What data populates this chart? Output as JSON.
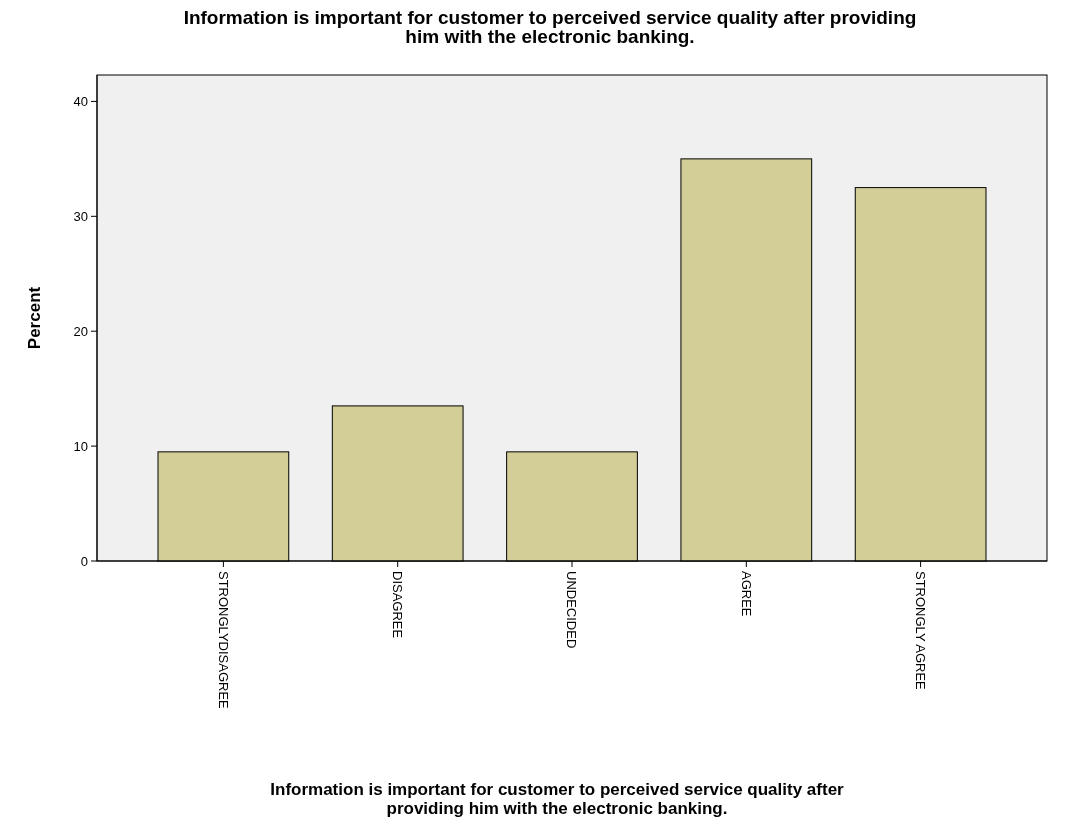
{
  "chart_data": {
    "type": "bar",
    "title": "Information is important for customer to perceived service quality after providing\nhim with the electronic banking.",
    "xlabel": "Information is important for customer to perceived service quality after\nproviding him with the electronic banking.",
    "ylabel": "Percent",
    "categories": [
      "STRONGLYDISAGREE",
      "DISAGREE",
      "UNDECIDED",
      "AGREE",
      "STRONGLY AGREE"
    ],
    "values": [
      9.5,
      13.5,
      9.5,
      35,
      32.5
    ],
    "color": "#d3ce97",
    "ylim": [
      0,
      42.3
    ],
    "yticks": [
      0,
      10,
      20,
      30,
      40
    ],
    "grid": false
  }
}
